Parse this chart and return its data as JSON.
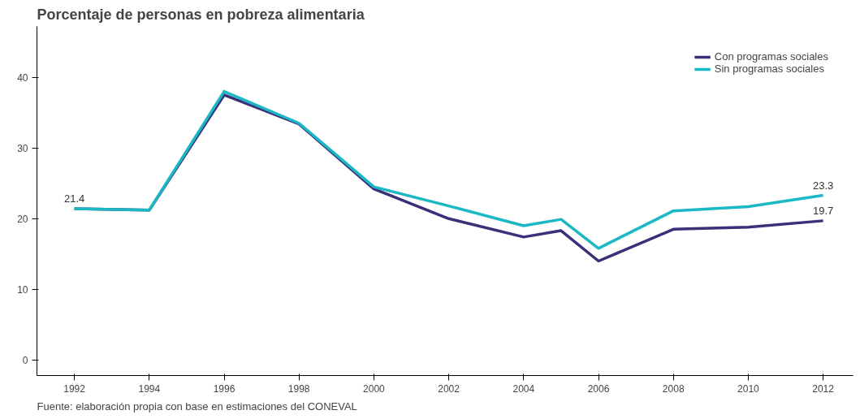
{
  "chart_data": {
    "type": "line",
    "title": "Porcentaje de personas en pobreza alimentaria",
    "x": [
      1992,
      1994,
      1996,
      1998,
      2000,
      2002,
      2004,
      2005,
      2006,
      2008,
      2010,
      2012
    ],
    "series": [
      {
        "name": "Con programas sociales",
        "color": "#3b2f7a",
        "values": [
          21.4,
          21.2,
          37.5,
          33.4,
          24.2,
          20.0,
          17.4,
          18.3,
          14.0,
          18.5,
          18.8,
          19.7
        ],
        "value_labels": [
          "21.4",
          null,
          null,
          null,
          null,
          null,
          null,
          null,
          null,
          null,
          null,
          "19.7"
        ]
      },
      {
        "name": "Sin programas sociales",
        "color": "#1ab8c4",
        "values": [
          21.4,
          21.2,
          38.0,
          33.5,
          24.5,
          21.8,
          19.0,
          19.9,
          15.8,
          21.1,
          21.7,
          23.3
        ],
        "value_labels": [
          null,
          null,
          null,
          null,
          null,
          null,
          null,
          null,
          null,
          null,
          null,
          "23.3"
        ]
      }
    ],
    "xlim": [
      1991,
      2012.8
    ],
    "ylim": [
      -2.2,
      47.2
    ],
    "xticks": [
      1992,
      1994,
      1996,
      1998,
      2000,
      2002,
      2004,
      2006,
      2008,
      2010,
      2012
    ],
    "yticks": [
      0,
      10,
      20,
      30,
      40
    ],
    "grid": false,
    "legend": "top right",
    "line_style": "solid",
    "marker": "none",
    "annotations": [
      "Fuente: elaboración propia con base en estimaciones del CONEVAL"
    ]
  }
}
